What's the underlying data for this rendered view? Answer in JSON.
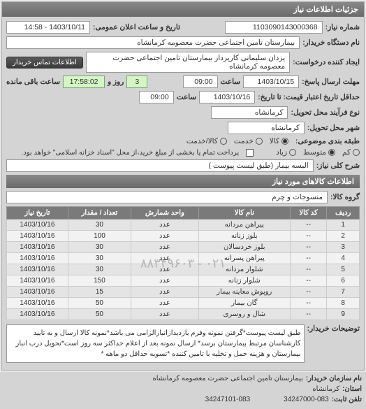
{
  "header": {
    "title": "جزئیات اطلاعات نیاز"
  },
  "top": {
    "req_no_label": "شماره نیاز:",
    "req_no": "1103090143000368",
    "announce_label": "تاریخ و ساعت اعلان عمومی:",
    "announce_val": "1403/10/11 - 14:58",
    "buyer_label": "نام دستگاه خریدار:",
    "buyer_val": "بیمارستان تامین اجتماعی حضرت معصومه کرمانشاه",
    "creator_label": "ایجاد کننده درخواست:",
    "creator_val": "یزدان سلیمانی کارپرداز بیمارستان تامین اجتماعی حضرت معصومه کرمانشاه",
    "contact_btn": "اطلاعات تماس خریدار",
    "deadline_send_label": "مهلت ارسال پاسخ:",
    "deadline_send_date": "1403/10/15",
    "time_label": "ساعت",
    "deadline_send_time": "09:00",
    "days_val": "3",
    "days_label": "روز و",
    "countdown": "17:58:02",
    "countdown_label": "ساعت باقی مانده",
    "validity_label": "حداقل تاریخ اعتبار قیمت: تا تاریخ:",
    "validity_date": "1403/10/16",
    "validity_time": "09:00",
    "process_label": "نوع فرآیند محل تحویل:",
    "city_label": "شهر محل تحویل:",
    "city_val": "کرمانشاه",
    "city_val2": "کرمانشاه",
    "class_label": "طبقه بندی موضوعی:",
    "class_kala": "کالا",
    "class_khadamat": "خدمت",
    "class_both": "کالا/خدمت",
    "req_type_label": "شرح کلی نیاز:",
    "req_type_val": "البسه بیمار (طبق لیست پیوست )",
    "pay_label": "",
    "importance_label": "",
    "imp_low": "کم",
    "imp_mid": "متوسط",
    "imp_high": "زیاد",
    "pay_note": "پرداخت تمام یا بخشی از مبلغ خرید،از محل \"اسناد خزانه اسلامی\" خواهد بود."
  },
  "items_section": {
    "title": "اطلاعات کالاهای مورد نیاز",
    "group_label": "گروه کالا:",
    "group_val": "منسوجات و چرم"
  },
  "table": {
    "headers": [
      "ردیف",
      "کد کالا",
      "نام کالا",
      "واحد شمارش",
      "تعداد / مقدار",
      "تاریخ نیاز"
    ],
    "rows": [
      [
        "1",
        "--",
        "پیراهن مردانه",
        "عدد",
        "30",
        "1403/10/16"
      ],
      [
        "2",
        "--",
        "بلوز زنانه",
        "عدد",
        "100",
        "1403/10/16"
      ],
      [
        "3",
        "--",
        "بلوز خردسالان",
        "عدد",
        "30",
        "1403/10/16"
      ],
      [
        "4",
        "--",
        "پیراهن پسرانه",
        "عدد",
        "30",
        "1403/10/16"
      ],
      [
        "5",
        "--",
        "شلوار مردانه",
        "عدد",
        "30",
        "1403/10/16"
      ],
      [
        "6",
        "--",
        "شلوار زنانه",
        "عدد",
        "150",
        "1403/10/16"
      ],
      [
        "7",
        "--",
        "روپوش معاینه بیمار",
        "عدد",
        "15",
        "1403/10/16"
      ],
      [
        "8",
        "--",
        "گان بیمار",
        "عدد",
        "50",
        "1403/10/16"
      ],
      [
        "9",
        "--",
        "شال و روسری",
        "عدد",
        "50",
        "1403/10/16"
      ]
    ],
    "watermark": "۰۲۱ - ۸۸۳۴۹۶۰۳"
  },
  "notes": {
    "label": "توضیحات خریدار:",
    "text": "طبق لیست پیوست*گرفتن نمونه وفرم بازدیدازانبارالزامی می باشد*نمونه کالا ارسال و به تایید کارشناسان مرتبط بیمارستان برسد* ارسال نمونه بعد از اعلام حداکثر سه روز است*تحویل درب انبار بیمارستان و هزینه حمل و تخلیه با تامین کننده *تسویه حداقل دو ماهه *"
  },
  "footer": {
    "org_label": "نام سازمان خریدار:",
    "org_val": "بیمارستان تامین اجتماعی حضرت معصومه کرمانشاه",
    "prov_label": "استان:",
    "prov_val": "کرمانشاه",
    "phone_label": "تلفن ثابت:",
    "phone_val": "34247000-083",
    "fax_label": "",
    "fax_val": "34247101-083"
  }
}
